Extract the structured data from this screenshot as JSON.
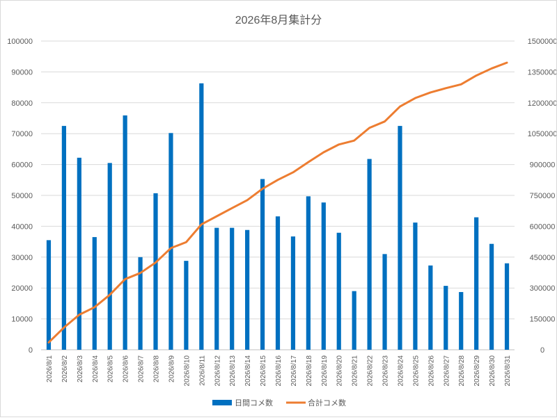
{
  "chart_data": {
    "type": "bar+line",
    "title": "2026年8月集計分",
    "categories": [
      "2026/8/1",
      "2026/8/2",
      "2026/8/3",
      "2026/8/4",
      "2026/8/5",
      "2026/8/6",
      "2026/8/7",
      "2026/8/8",
      "2026/8/9",
      "2026/8/10",
      "2026/8/11",
      "2026/8/12",
      "2026/8/13",
      "2026/8/14",
      "2026/8/15",
      "2026/8/16",
      "2026/8/17",
      "2026/8/18",
      "2026/8/19",
      "2026/8/20",
      "2026/8/21",
      "2026/8/22",
      "2026/8/23",
      "2026/8/24",
      "2026/8/25",
      "2026/8/26",
      "2026/8/27",
      "2026/8/28",
      "2026/8/29",
      "2026/8/30",
      "2026/8/31"
    ],
    "left_axis": {
      "min": 0,
      "max": 100000,
      "step": 10000,
      "ticks": [
        "0",
        "10000",
        "20000",
        "30000",
        "40000",
        "50000",
        "60000",
        "70000",
        "80000",
        "90000",
        "100000"
      ]
    },
    "right_axis": {
      "min": 0,
      "max": 1500000,
      "step": 150000,
      "ticks": [
        "0",
        "150000",
        "300000",
        "450000",
        "600000",
        "750000",
        "900000",
        "1050000",
        "1200000",
        "1350000",
        "1500000"
      ]
    },
    "grid": true,
    "legend_position": "bottom",
    "series": [
      {
        "name": "日間コメ数",
        "type": "bar",
        "axis": "left",
        "color": "#0070C0",
        "values": [
          35500,
          72500,
          62200,
          36500,
          60500,
          75900,
          30000,
          50700,
          70200,
          28800,
          86300,
          39500,
          39500,
          38800,
          55300,
          43200,
          36700,
          49700,
          47700,
          37900,
          19000,
          61800,
          31000,
          72500,
          41200,
          27300,
          20700,
          18700,
          42900,
          34300,
          28000
        ]
      },
      {
        "name": "合計コメ数",
        "type": "line",
        "axis": "right",
        "color": "#ED7D31",
        "values": [
          35500,
          108000,
          170200,
          206700,
          267200,
          343100,
          373100,
          423800,
          494000,
          522800,
          609100,
          648600,
          688100,
          726900,
          782200,
          825400,
          862100,
          911800,
          959500,
          997400,
          1016400,
          1078200,
          1109200,
          1181700,
          1222900,
          1250200,
          1270900,
          1289600,
          1332500,
          1366800,
          1394800
        ]
      }
    ]
  }
}
